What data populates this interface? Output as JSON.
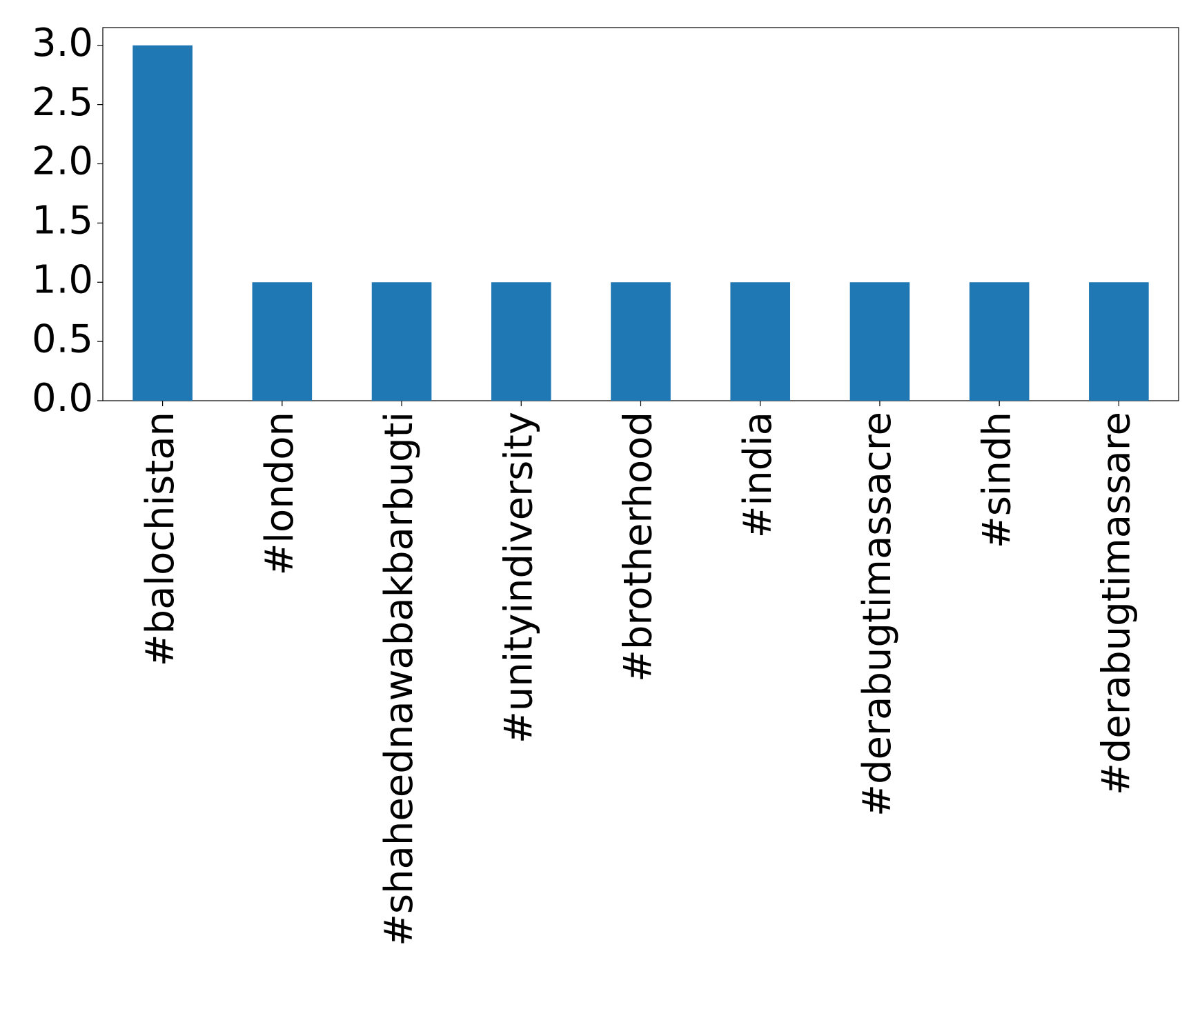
{
  "chart_data": {
    "type": "bar",
    "categories": [
      "#balochistan",
      "#london",
      "#shaheednawabakbarbugti",
      "#unityindiversity",
      "#brotherhood",
      "#india",
      "#derabugtimassacre",
      "#sindh",
      "#derabugtimassare"
    ],
    "values": [
      3,
      1,
      1,
      1,
      1,
      1,
      1,
      1,
      1
    ],
    "color": "#1f77b4",
    "ylim": [
      0,
      3.15
    ],
    "yticks": [
      {
        "value": 0,
        "label": "0.0"
      },
      0.5,
      {
        "value": 1,
        "label": "1.0"
      },
      1.5,
      {
        "value": 2,
        "label": "2.0"
      },
      2.5,
      {
        "value": 3,
        "label": "3.0"
      }
    ],
    "grid": false
  }
}
